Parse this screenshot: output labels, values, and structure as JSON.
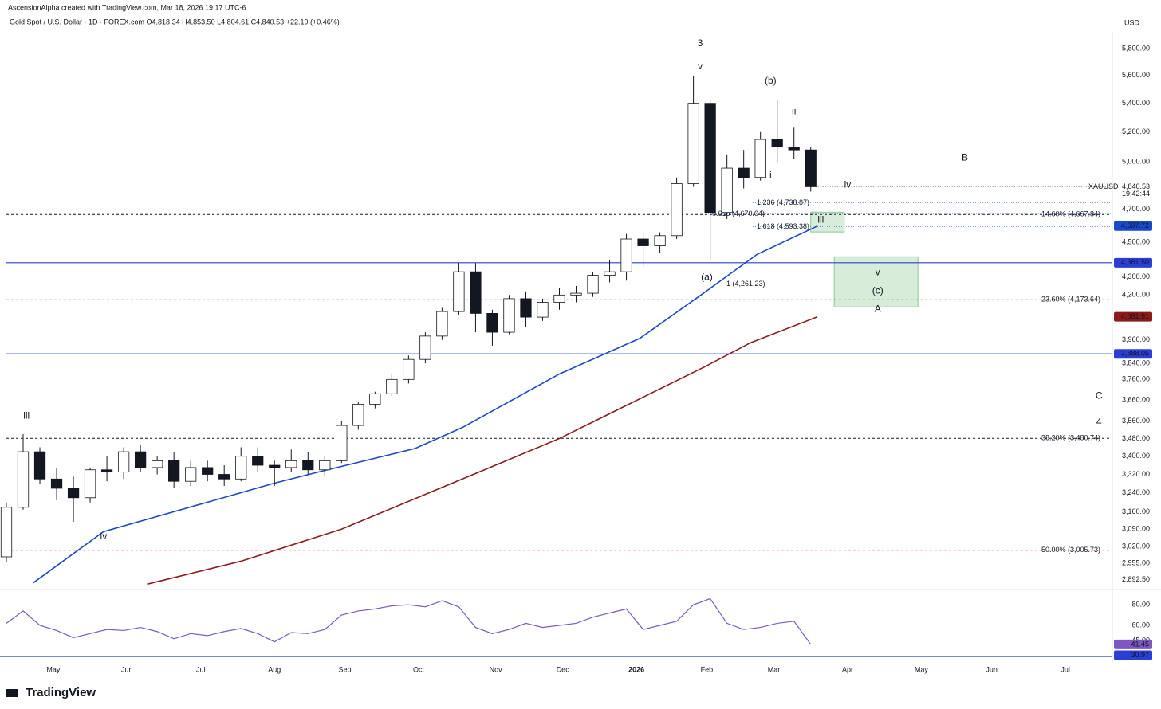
{
  "chart_data": {
    "type": "candlestick",
    "attribution": "AscensionAlpha created with TradingView.com, Mar 18, 2026 19:17 UTC-6",
    "title": "Gold Spot / U.S. Dollar · 1D · FOREX.com  O4,818.34 H4,853.50 L4,804.61 C4,840.53 +22.19 (+0.46%)",
    "currency": "USD",
    "brand": "TradingView",
    "log_scale": true,
    "grid": false,
    "up_color": "#ffffff",
    "down_color": "#131722",
    "x": [
      0,
      5,
      10,
      15,
      20,
      25,
      30,
      35,
      40,
      45,
      50,
      55,
      60,
      65,
      70,
      75,
      80,
      85,
      90,
      95,
      100,
      105,
      110,
      115,
      120,
      125,
      130,
      135,
      140,
      145,
      150,
      155,
      160,
      165,
      170,
      175,
      180,
      185,
      190,
      195,
      200,
      205,
      210,
      215,
      220,
      225,
      230,
      235,
      240
    ],
    "open": [
      2980,
      3180,
      3420,
      3300,
      3260,
      3220,
      3340,
      3330,
      3420,
      3350,
      3380,
      3290,
      3350,
      3320,
      3300,
      3400,
      3360,
      3350,
      3380,
      3340,
      3380,
      3540,
      3640,
      3690,
      3760,
      3860,
      3980,
      4110,
      4330,
      4100,
      4000,
      4180,
      4080,
      4160,
      4200,
      4210,
      4310,
      4330,
      4520,
      4480,
      4540,
      4860,
      5400,
      4680,
      4960,
      4900,
      5150,
      5100,
      5080
    ],
    "high": [
      3200,
      3500,
      3440,
      3350,
      3310,
      3350,
      3400,
      3440,
      3450,
      3400,
      3420,
      3380,
      3380,
      3360,
      3440,
      3440,
      3380,
      3430,
      3420,
      3400,
      3560,
      3650,
      3700,
      3790,
      3880,
      4000,
      4130,
      4380,
      4380,
      4120,
      4200,
      4220,
      4180,
      4240,
      4250,
      4330,
      4400,
      4550,
      4560,
      4560,
      4900,
      5600,
      5420,
      5050,
      5080,
      5200,
      5420,
      5230,
      5100
    ],
    "low": [
      2960,
      3170,
      3280,
      3210,
      3120,
      3200,
      3290,
      3300,
      3330,
      3320,
      3260,
      3270,
      3290,
      3270,
      3290,
      3330,
      3270,
      3330,
      3320,
      3310,
      3370,
      3520,
      3620,
      3680,
      3740,
      3840,
      3960,
      4090,
      4000,
      3930,
      3990,
      4030,
      4060,
      4120,
      4160,
      4190,
      4270,
      4280,
      4350,
      4440,
      4520,
      4840,
      4400,
      4640,
      4830,
      4880,
      4990,
      5020,
      4810
    ],
    "close": [
      3180,
      3420,
      3300,
      3260,
      3220,
      3340,
      3330,
      3420,
      3350,
      3380,
      3290,
      3350,
      3320,
      3300,
      3400,
      3360,
      3350,
      3380,
      3340,
      3380,
      3540,
      3640,
      3690,
      3760,
      3860,
      3980,
      4110,
      4330,
      4100,
      4000,
      4180,
      4080,
      4160,
      4200,
      4210,
      4310,
      4330,
      4520,
      4480,
      4540,
      4860,
      5400,
      4680,
      4960,
      4900,
      5150,
      5100,
      5080,
      4840.53
    ],
    "last_price": {
      "symbol": "XAUUSD",
      "label": "4,840.53",
      "countdown": "19:42:44"
    },
    "moving_averages": [
      {
        "color": "#1848cc",
        "x": [
          8,
          29,
          80,
          93,
          122,
          136,
          165,
          189,
          208,
          224,
          242
        ],
        "values": [
          2880,
          3080,
          3282,
          3330,
          3435,
          3530,
          3787,
          3968,
          4210,
          4430,
          4597.72
        ],
        "badge": "4,597.72"
      },
      {
        "color": "#8b1a1a",
        "x": [
          42,
          70,
          100,
          141,
          165,
          208,
          222,
          242
        ],
        "values": [
          2875,
          2963,
          3090,
          3330,
          3480,
          3820,
          3945,
          4081.91
        ],
        "badge": "4,081.91"
      }
    ],
    "xlim": [
      0,
      330
    ],
    "xticks": [
      {
        "value": 14,
        "label": "May"
      },
      {
        "value": 36,
        "label": "Jun"
      },
      {
        "value": 58,
        "label": "Jul"
      },
      {
        "value": 80,
        "label": "Aug"
      },
      {
        "value": 101,
        "label": "Sep"
      },
      {
        "value": 123,
        "label": "Oct"
      },
      {
        "value": 146,
        "label": "Nov"
      },
      {
        "value": 166,
        "label": "Dec"
      },
      {
        "value": 188,
        "label": "2026"
      },
      {
        "value": 209,
        "label": "Feb"
      },
      {
        "value": 229,
        "label": "Mar"
      },
      {
        "value": 251,
        "label": "Apr"
      },
      {
        "value": 273,
        "label": "May"
      },
      {
        "value": 294,
        "label": "Jun"
      },
      {
        "value": 316,
        "label": "Jul"
      }
    ],
    "ylim": [
      2870,
      5930
    ],
    "yticks": [
      {
        "value": 5800,
        "label": "5,800.00"
      },
      {
        "value": 5600,
        "label": "5,600.00"
      },
      {
        "value": 5400,
        "label": "5,400.00"
      },
      {
        "value": 5200,
        "label": "5,200.00"
      },
      {
        "value": 5000,
        "label": "5,000.00"
      },
      {
        "value": 4700,
        "label": "4,700.00"
      },
      {
        "value": 4500,
        "label": "4,500.00"
      },
      {
        "value": 4300,
        "label": "4,300.00"
      },
      {
        "value": 4200,
        "label": "4,200.00"
      },
      {
        "value": 3960,
        "label": "3,960.00"
      },
      {
        "value": 3840,
        "label": "3,840.00"
      },
      {
        "value": 3760,
        "label": "3,760.00"
      },
      {
        "value": 3660,
        "label": "3,660.00"
      },
      {
        "value": 3560,
        "label": "3,560.00"
      },
      {
        "value": 3480,
        "label": "3,480.00"
      },
      {
        "value": 3400,
        "label": "3,400.00"
      },
      {
        "value": 3320,
        "label": "3,320.00"
      },
      {
        "value": 3240,
        "label": "3,240.00"
      },
      {
        "value": 3160,
        "label": "3,160.00"
      },
      {
        "value": 3090,
        "label": "3,090.00"
      },
      {
        "value": 3020,
        "label": "3,020.00"
      },
      {
        "value": 2955,
        "label": "2,955.00"
      },
      {
        "value": 2892.5,
        "label": "2,892.50"
      }
    ],
    "levels": [
      {
        "value": 4667.84,
        "kind": "retracement",
        "color": "#131722",
        "label": "14.60% (4,667.84)"
      },
      {
        "value": 4173.64,
        "kind": "retracement",
        "color": "#131722",
        "label": "23.60% (4,173.64)"
      },
      {
        "value": 3480.74,
        "kind": "retracement",
        "color": "#131722",
        "label": "38.20% (3,480.74)"
      },
      {
        "value": 3005.73,
        "kind": "retracement",
        "color": "#e04545",
        "label": "50.00% (3,005.73)"
      },
      {
        "value": 4381.5,
        "kind": "horizontal",
        "color": "#2a3fd6",
        "badge": "4,381.50"
      },
      {
        "value": 3888.05,
        "kind": "horizontal",
        "color": "#2a3fd6",
        "badge": "3,888.05"
      },
      {
        "value": 4738.87,
        "kind": "extension",
        "color": "#2962ff",
        "label": "1.236 (4,738.87)"
      },
      {
        "value": 4670.04,
        "kind": "extension",
        "color": "#2962ff",
        "label": "0.618 (4,670.04)"
      },
      {
        "value": 4593.38,
        "kind": "extension",
        "color": "#2962ff",
        "label": "1.618 (4,593.38)"
      },
      {
        "value": 4261.23,
        "kind": "extension",
        "color": "#26b5c9",
        "label": "1 (4,261.23)"
      }
    ],
    "zones": [
      {
        "x": [
          240,
          250
        ],
        "y": [
          4562,
          4682
        ],
        "color": "#4caf50"
      },
      {
        "x": [
          247,
          272
        ],
        "y": [
          4135,
          4416
        ],
        "color": "#4caf50"
      }
    ],
    "annotations": [
      {
        "text": "3",
        "x": 207,
        "y": 5840,
        "color": "#1a9a8a"
      },
      {
        "text": "v",
        "x": 207,
        "y": 5664,
        "color": "#1a9a8a"
      },
      {
        "text": "iii",
        "x": 6,
        "y": 3583,
        "color": "#1a9a8a"
      },
      {
        "text": "iv",
        "x": 29,
        "y": 3060,
        "color": "#1a9a8a"
      },
      {
        "text": "(b)",
        "x": 228,
        "y": 5560,
        "color": "#e0323a"
      },
      {
        "text": "ii",
        "x": 235,
        "y": 5340,
        "color": "#e0323a"
      },
      {
        "text": "i",
        "x": 228,
        "y": 4912,
        "color": "#e0323a"
      },
      {
        "text": "iv",
        "x": 251,
        "y": 4851,
        "color": "#e0323a"
      },
      {
        "text": "iii",
        "x": 243,
        "y": 4633,
        "color": "#e0323a"
      },
      {
        "text": "(a)",
        "x": 209,
        "y": 4298,
        "color": "#e0323a"
      },
      {
        "text": "v",
        "x": 260,
        "y": 4325,
        "color": "#e0323a"
      },
      {
        "text": "(c)",
        "x": 260,
        "y": 4223,
        "color": "#e0323a"
      },
      {
        "text": "A",
        "x": 260,
        "y": 4122,
        "color": "#9c27b0"
      },
      {
        "text": "B",
        "x": 286,
        "y": 5026,
        "color": "#9c27b0"
      },
      {
        "text": "C",
        "x": 326,
        "y": 3678,
        "color": "#9c27b0"
      },
      {
        "text": "4",
        "x": 326,
        "y": 3553,
        "color": "#1a9a8a"
      }
    ],
    "rsi": {
      "color": "#7e57c2",
      "ylim": [
        29,
        91
      ],
      "yticks": [
        {
          "value": 80,
          "label": "80.00"
        },
        {
          "value": 60,
          "label": "60.00"
        },
        {
          "value": 45,
          "label": "45.00"
        }
      ],
      "values": [
        62,
        74,
        60,
        55,
        48,
        52,
        56,
        55,
        58,
        54,
        47,
        52,
        50,
        54,
        57,
        52,
        44,
        53,
        52,
        56,
        70,
        74,
        76,
        79,
        80,
        78,
        84,
        78,
        58,
        52,
        56,
        62,
        58,
        60,
        62,
        68,
        72,
        76,
        56,
        60,
        64,
        80,
        86,
        62,
        56,
        58,
        62,
        64,
        41.45
      ],
      "badges": [
        {
          "value": 41.45,
          "label": "41.45",
          "color": "#7e57c2"
        },
        {
          "value": 30.97,
          "label": "30.97",
          "color": "#2a3fd6"
        }
      ]
    }
  }
}
